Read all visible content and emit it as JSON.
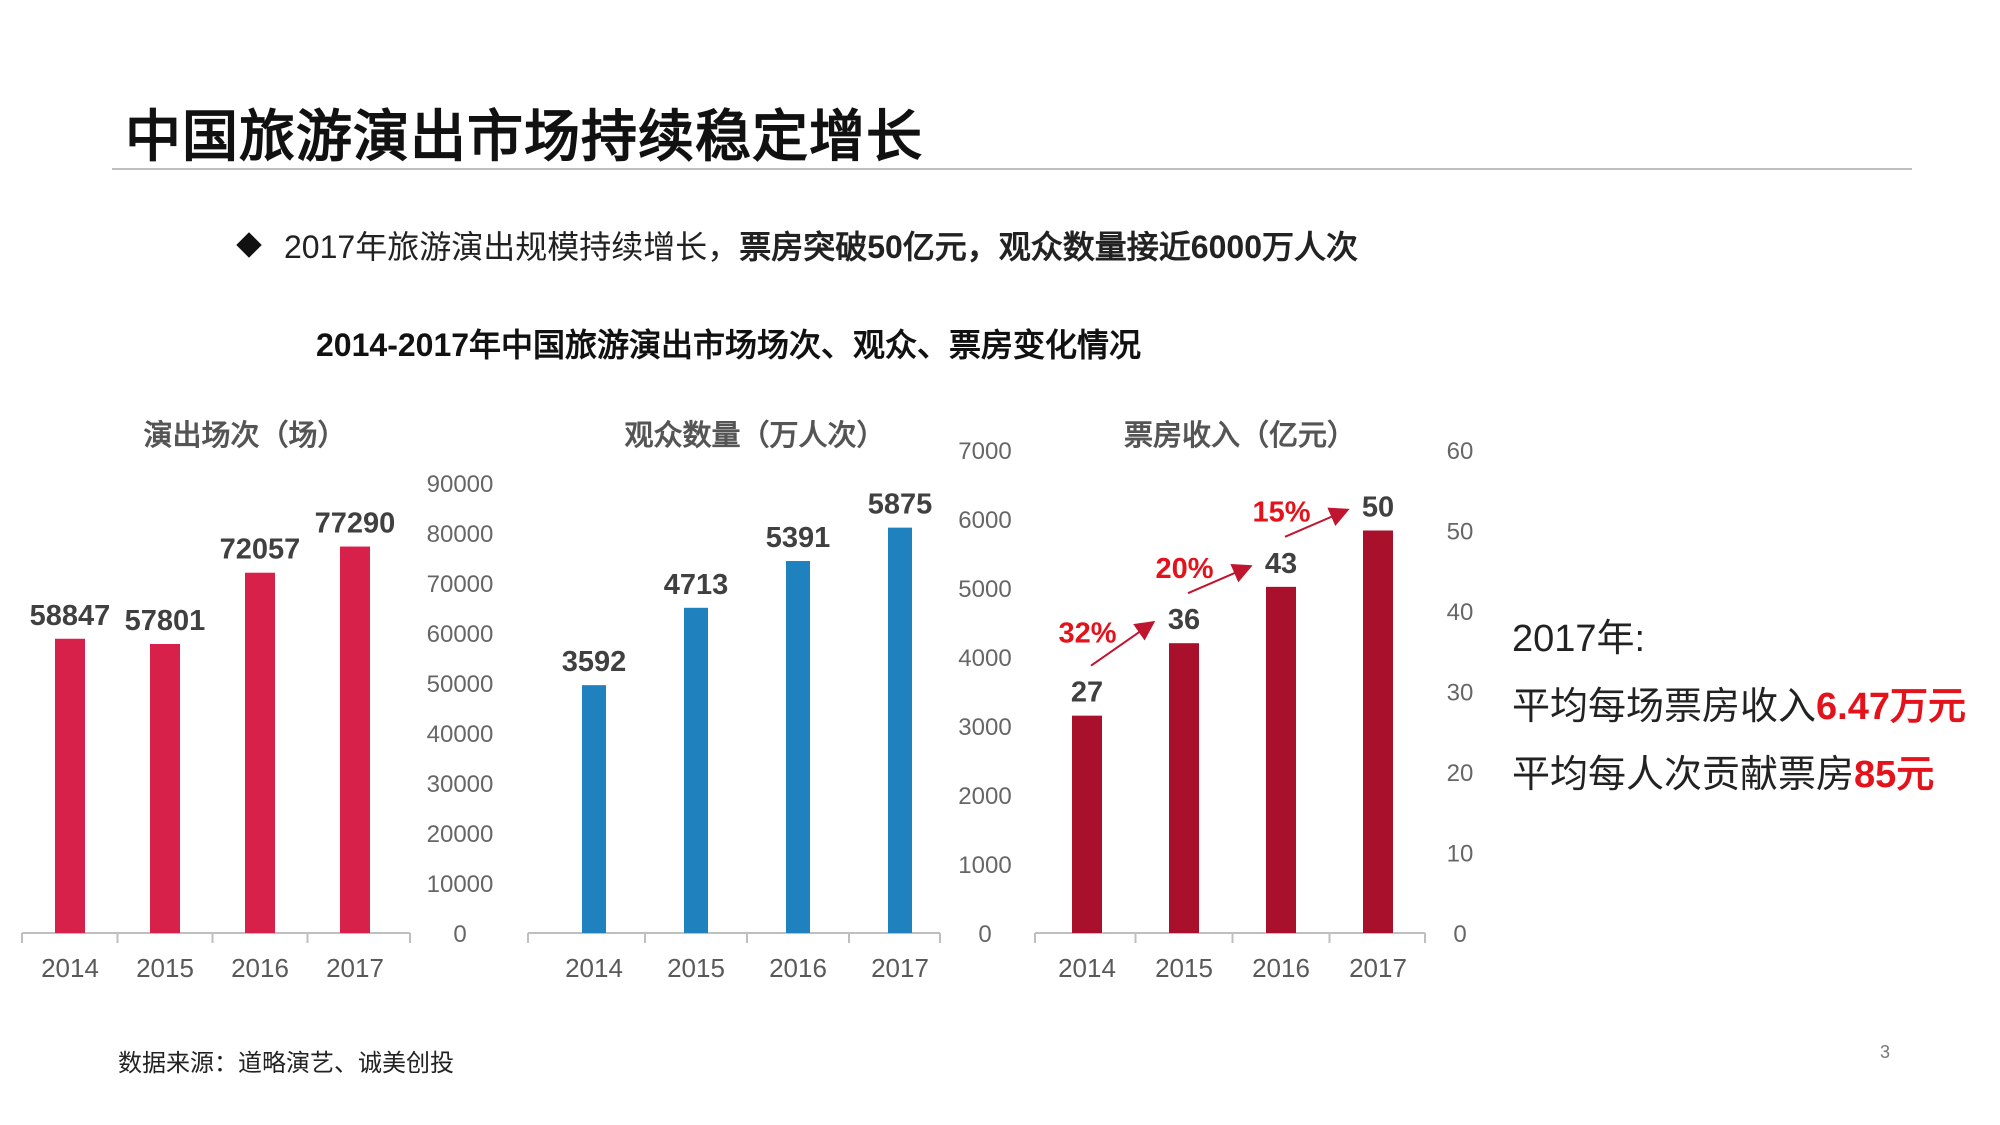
{
  "slide": {
    "title": "中国旅游演出市场持续稳定增长",
    "bullet_plain": "2017年旅游演出规模持续增长，",
    "bullet_bold": "票房突破50亿元，观众数量接近6000万人次",
    "subtitle": "2014-2017年中国旅游演出市场场次、观众、票房变化情况",
    "source": "数据来源：道略演艺、诚美创投",
    "page_number": "3"
  },
  "summary": {
    "year_label": "2017年:",
    "line1_prefix": "平均每场票房收入",
    "line1_value": "6.47万元",
    "line2_prefix": "平均每人次贡献票房",
    "line2_value": "85元"
  },
  "colors": {
    "shows": "#d7204a",
    "audience": "#1f82be",
    "box_office": "#a8102b",
    "growth": "#e3121b"
  },
  "chart_data": [
    {
      "type": "bar",
      "title": "演出场次（场）",
      "categories": [
        "2014",
        "2015",
        "2016",
        "2017"
      ],
      "values": [
        58847,
        57801,
        72057,
        77290
      ],
      "ylim": [
        0,
        90000
      ],
      "yticks": [
        0,
        10000,
        20000,
        30000,
        40000,
        50000,
        60000,
        70000,
        80000,
        90000
      ],
      "ylabel": "",
      "xlabel": "",
      "grid": false
    },
    {
      "type": "bar",
      "title": "观众数量（万人次）",
      "categories": [
        "2014",
        "2015",
        "2016",
        "2017"
      ],
      "values": [
        3592,
        4713,
        5391,
        5875
      ],
      "ylim": [
        0,
        7000
      ],
      "yticks": [
        0,
        1000,
        2000,
        3000,
        4000,
        5000,
        6000,
        7000
      ],
      "ylabel": "",
      "xlabel": "",
      "grid": false
    },
    {
      "type": "bar",
      "title": "票房收入（亿元）",
      "categories": [
        "2014",
        "2015",
        "2016",
        "2017"
      ],
      "values": [
        27,
        36,
        43,
        50
      ],
      "ylim": [
        0,
        60
      ],
      "yticks": [
        0,
        10,
        20,
        30,
        40,
        50,
        60
      ],
      "growth_labels": [
        "32%",
        "20%",
        "15%"
      ],
      "ylabel": "",
      "xlabel": "",
      "grid": false
    }
  ]
}
